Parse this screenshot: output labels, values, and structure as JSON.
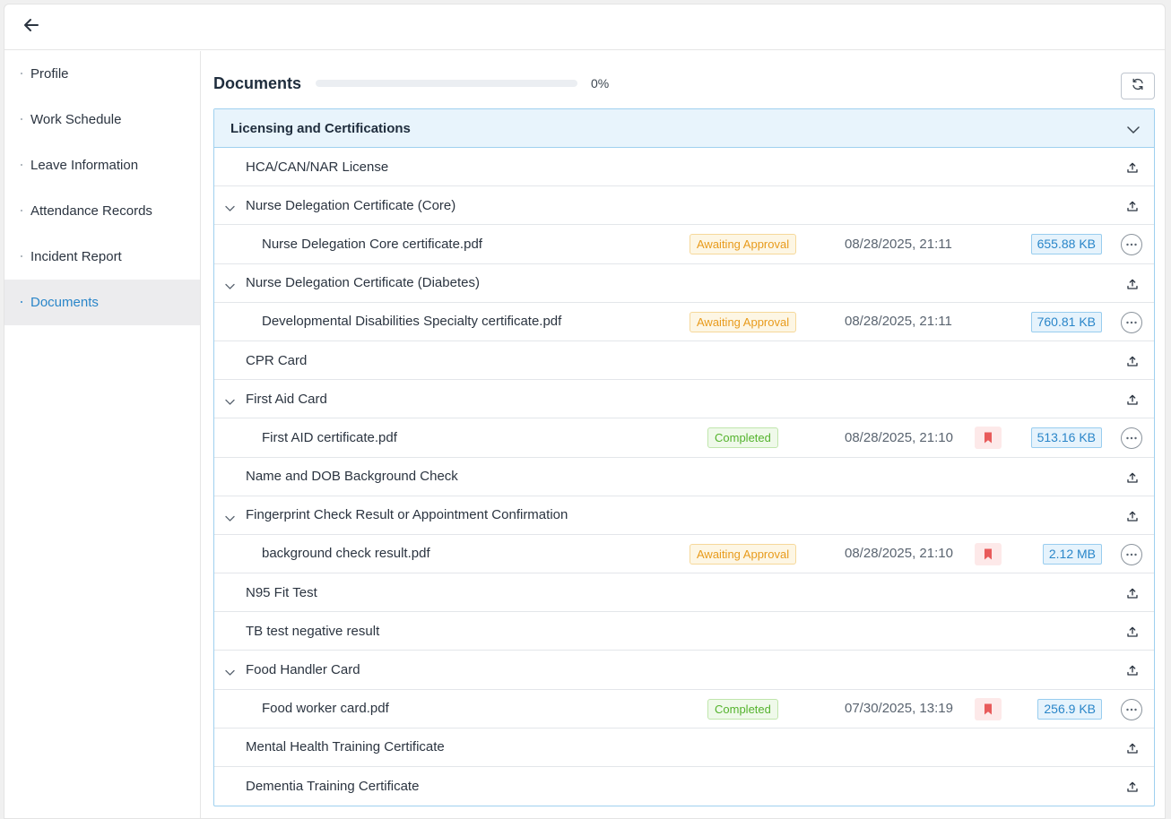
{
  "topbar": {
    "back_icon": "arrow-left-icon"
  },
  "sidebar": {
    "items": [
      {
        "label": "Profile",
        "active": false
      },
      {
        "label": "Work Schedule",
        "active": false
      },
      {
        "label": "Leave Information",
        "active": false
      },
      {
        "label": "Attendance Records",
        "active": false
      },
      {
        "label": "Incident Report",
        "active": false
      },
      {
        "label": "Documents",
        "active": true
      }
    ]
  },
  "main": {
    "title": "Documents",
    "progress_fraction": 0,
    "progress_label": "0%",
    "refresh_icon": "refresh-icon"
  },
  "section": {
    "title": "Licensing and Certifications",
    "rows": [
      {
        "type": "category",
        "label": "HCA/CAN/NAR License",
        "expandable": false
      },
      {
        "type": "category",
        "label": "Nurse Delegation Certificate (Core)",
        "expandable": true
      },
      {
        "type": "file",
        "label": "Nurse Delegation Core certificate.pdf",
        "status": "Awaiting Approval",
        "status_kind": "awaiting",
        "date": "08/28/2025, 21:11",
        "flag": false,
        "size": "655.88 KB"
      },
      {
        "type": "category",
        "label": "Nurse Delegation Certificate (Diabetes)",
        "expandable": true
      },
      {
        "type": "file",
        "label": "Developmental Disabilities Specialty certificate.pdf",
        "status": "Awaiting Approval",
        "status_kind": "awaiting",
        "date": "08/28/2025, 21:11",
        "flag": false,
        "size": "760.81 KB"
      },
      {
        "type": "category",
        "label": "CPR Card",
        "expandable": false
      },
      {
        "type": "category",
        "label": "First Aid Card",
        "expandable": true
      },
      {
        "type": "file",
        "label": "First AID certificate.pdf",
        "status": "Completed",
        "status_kind": "completed",
        "date": "08/28/2025, 21:10",
        "flag": true,
        "size": "513.16 KB"
      },
      {
        "type": "category",
        "label": "Name and DOB Background Check",
        "expandable": false
      },
      {
        "type": "category",
        "label": "Fingerprint Check Result or Appointment Confirmation",
        "expandable": true
      },
      {
        "type": "file",
        "label": "background check result.pdf",
        "status": "Awaiting Approval",
        "status_kind": "awaiting",
        "date": "08/28/2025, 21:10",
        "flag": true,
        "size": "2.12 MB"
      },
      {
        "type": "category",
        "label": "N95 Fit Test",
        "expandable": false
      },
      {
        "type": "category",
        "label": "TB test negative result",
        "expandable": false
      },
      {
        "type": "category",
        "label": "Food Handler Card",
        "expandable": true
      },
      {
        "type": "file",
        "label": "Food worker card.pdf",
        "status": "Completed",
        "status_kind": "completed",
        "date": "07/30/2025, 13:19",
        "flag": true,
        "size": "256.9 KB"
      },
      {
        "type": "category",
        "label": "Mental Health Training Certificate",
        "expandable": false
      },
      {
        "type": "category",
        "label": "Dementia Training Certificate",
        "expandable": false
      }
    ]
  },
  "colors": {
    "accent": "#2a86c9",
    "awaiting": "#e89b1c",
    "completed": "#54b32d",
    "flag": "#e85b5b"
  }
}
